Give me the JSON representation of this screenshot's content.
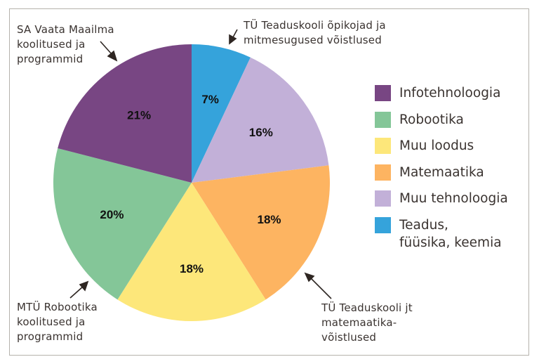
{
  "chart_data": {
    "type": "pie",
    "title": "",
    "start_angle_deg": 0,
    "direction": "clockwise",
    "slices": [
      {
        "label": "Teadus, füüsika, keemia",
        "value": 7,
        "display": "7%",
        "color": "#35a3db"
      },
      {
        "label": "Muu tehnoloogia",
        "value": 16,
        "display": "16%",
        "color": "#c2b0d8"
      },
      {
        "label": "Matemaatika",
        "value": 18,
        "display": "18%",
        "color": "#fdb461"
      },
      {
        "label": "Muu loodus",
        "value": 18,
        "display": "18%",
        "color": "#fde77a"
      },
      {
        "label": "Robootika",
        "value": 20,
        "display": "20%",
        "color": "#84c698"
      },
      {
        "label": "Infotehnoloogia",
        "value": 21,
        "display": "21%",
        "color": "#784683"
      }
    ],
    "legend": {
      "position": "right",
      "entries": [
        {
          "label": "Infotehnoloogia",
          "color": "#784683"
        },
        {
          "label": "Robootika",
          "color": "#84c698"
        },
        {
          "label": "Muu loodus",
          "color": "#fde77a"
        },
        {
          "label": "Matemaatika",
          "color": "#fdb461"
        },
        {
          "label": "Muu tehnoloogia",
          "color": "#c2b0d8"
        },
        {
          "label": "Teadus,\nfüüsika, keemia",
          "color": "#35a3db"
        }
      ]
    },
    "annotations": [
      {
        "text": "SA Vaata Maailma\nkoolitused ja\nprogrammid",
        "target": "Infotehnoloogia"
      },
      {
        "text": "TÜ Teaduskooli õpikojad ja\nmitmesugused võistlused",
        "target": "Teadus, füüsika, keemia"
      },
      {
        "text": "MTÜ Robootika\nkoolitused ja\nprogrammid",
        "target": "Robootika"
      },
      {
        "text": "TÜ Teaduskooli jt\nmatemaatika-\nvõistlused",
        "target": "Matemaatika"
      }
    ]
  },
  "annotations": {
    "top_left": [
      "SA Vaata Maailma",
      "koolitused ja",
      "programmid"
    ],
    "top_right": [
      "TÜ Teaduskooli õpikojad ja",
      "mitmesugused võistlused"
    ],
    "bottom_left": [
      "MTÜ Robootika",
      "koolitused ja",
      "programmid"
    ],
    "bottom_right": [
      "TÜ Teaduskooli jt",
      "matemaatika-",
      "võistlused"
    ]
  },
  "legend": [
    {
      "label": "Infotehnoloogia",
      "color": "#784683"
    },
    {
      "label": "Robootika",
      "color": "#84c698"
    },
    {
      "label": "Muu loodus",
      "color": "#fde77a"
    },
    {
      "label": "Matemaatika",
      "color": "#fdb461"
    },
    {
      "label": "Muu tehnoloogia",
      "color": "#c2b0d8"
    },
    {
      "label": "Teadus,\nfüüsika, keemia",
      "color": "#35a3db"
    }
  ]
}
